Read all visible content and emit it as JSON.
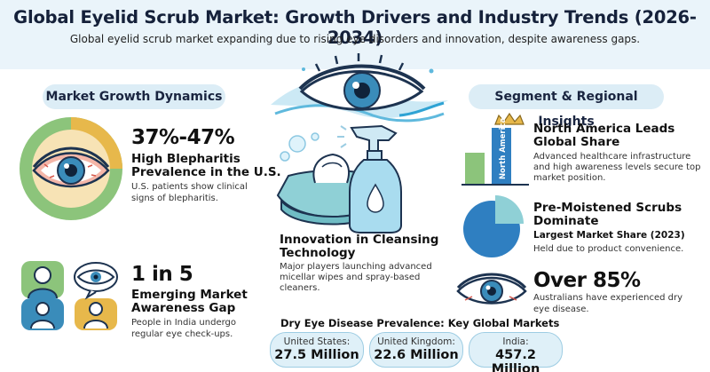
{
  "header": {
    "title": "Global Eyelid Scrub Market: Growth Drivers and Industry Trends (2026-2034)",
    "subtitle": "Global eyelid scrub market expanding due to rising eye disorders and innovation, despite awareness gaps."
  },
  "left": {
    "section_title": "Market Growth Dynamics",
    "blepharitis": {
      "stat": "37%-47%",
      "heading": "High Blepharitis Prevalence in the U.S.",
      "heading_line1": "High Blepharitis",
      "heading_line2": "Prevalence in the U.S.",
      "body_line1": "U.S. patients show clinical",
      "body_line2": "signs of blepharitis."
    },
    "awareness": {
      "stat": "1 in 5",
      "heading_line1": "Emerging Market",
      "heading_line2": "Awareness Gap",
      "body_line1": "People in India undergo",
      "body_line2": "regular eye check-ups."
    }
  },
  "center": {
    "innovation": {
      "heading_line1": "Innovation in Cleansing",
      "heading_line2": "Technology",
      "body_line1": "Major players launching advanced",
      "body_line2": "micellar wipes and spray-based",
      "body_line3": "cleaners."
    },
    "markets": {
      "title": "Dry Eye Disease Prevalence: Key Global Markets",
      "items": [
        {
          "name": "United States:",
          "value": "27.5 Million"
        },
        {
          "name": "United Kingdom:",
          "value": "22.6 Million"
        },
        {
          "name": "India:",
          "value": "457.2 Million"
        }
      ]
    }
  },
  "right": {
    "section_title": "Segment & Regional Insights",
    "north_america": {
      "bar_label": "North America",
      "heading_line1": "North America Leads",
      "heading_line2": "Global Share",
      "body_line1": "Advanced healthcare infrastructure",
      "body_line2": "and high awareness levels secure top",
      "body_line3": "market position."
    },
    "pre_moistened": {
      "heading_line1": "Pre-Moistened Scrubs",
      "heading_line2": "Dominate",
      "subheading": "Largest Market Share (2023)",
      "body": "Held due to product convenience."
    },
    "australia": {
      "stat": "Over 85%",
      "body_line1": "Australians have experienced dry",
      "body_line2": "eye disease."
    }
  },
  "colors": {
    "header_bg": "#eaf4fa",
    "pill_bg": "#dcedf6",
    "accent_blue": "#2f7fc1",
    "green": "#8cc47b",
    "gold": "#e7b84b"
  },
  "icons": [
    "eye-icon",
    "gold-crown-icon",
    "wet-wipes-pack-icon",
    "spray-bottle-icon",
    "people-icon",
    "pie-chart-icon",
    "bar-chart-icon"
  ]
}
